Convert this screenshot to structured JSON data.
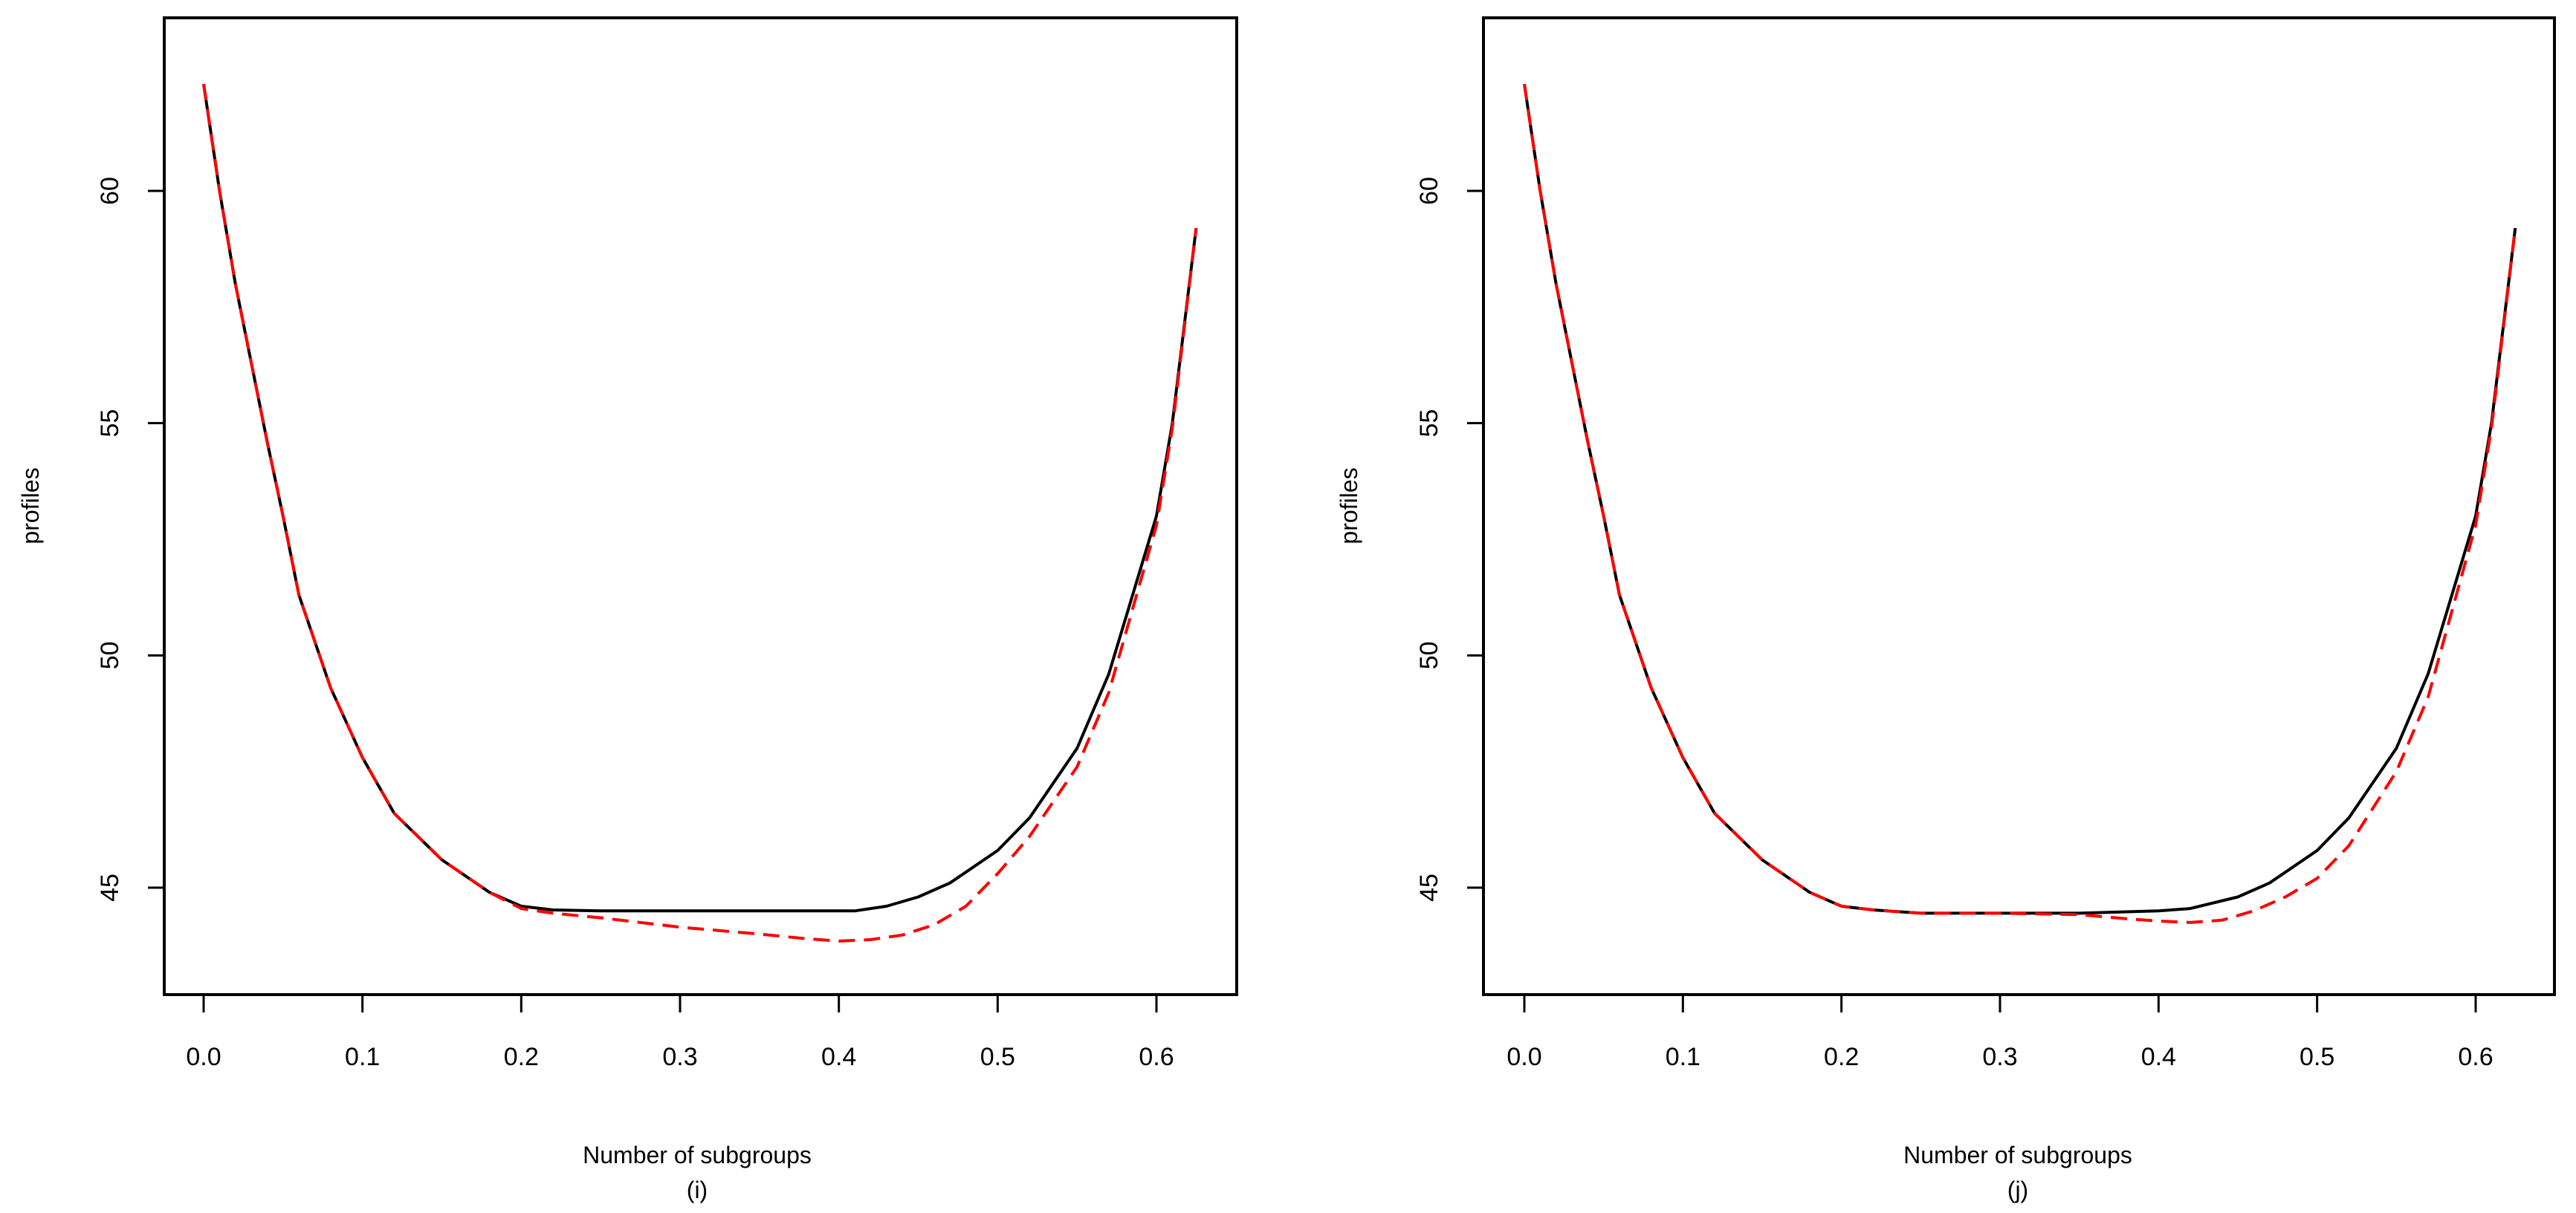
{
  "chart_data": [
    {
      "type": "line",
      "panel_label": "(i)",
      "title": "",
      "xlabel": "Number of subgroups",
      "ylabel": "profiles",
      "xlim": [
        -0.025,
        0.65
      ],
      "ylim": [
        42.7,
        63.7
      ],
      "xticks": [
        0.0,
        0.1,
        0.2,
        0.3,
        0.4,
        0.5,
        0.6
      ],
      "xtick_labels": [
        "0.0",
        "0.1",
        "0.2",
        "0.3",
        "0.4",
        "0.5",
        "0.6"
      ],
      "yticks": [
        45,
        50,
        55,
        60
      ],
      "ytick_labels": [
        "45",
        "50",
        "55",
        "60"
      ],
      "grid": false,
      "legend": null,
      "series": [
        {
          "name": "black-solid",
          "color": "#000000",
          "style": "solid",
          "x": [
            0.0,
            0.01,
            0.02,
            0.03,
            0.04,
            0.05,
            0.06,
            0.08,
            0.1,
            0.12,
            0.15,
            0.18,
            0.2,
            0.22,
            0.25,
            0.3,
            0.35,
            0.41,
            0.43,
            0.45,
            0.47,
            0.5,
            0.52,
            0.55,
            0.57,
            0.6,
            0.61,
            0.625
          ],
          "y": [
            62.3,
            60.0,
            58.0,
            56.3,
            54.6,
            53.0,
            51.3,
            49.3,
            47.8,
            46.6,
            45.6,
            44.9,
            44.6,
            44.52,
            44.5,
            44.5,
            44.5,
            44.5,
            44.6,
            44.8,
            45.1,
            45.8,
            46.5,
            48.0,
            49.6,
            53.0,
            55.0,
            59.2
          ]
        },
        {
          "name": "red-dashed",
          "color": "#ff0000",
          "style": "dashed",
          "x": [
            0.0,
            0.01,
            0.02,
            0.03,
            0.04,
            0.05,
            0.06,
            0.08,
            0.1,
            0.12,
            0.15,
            0.18,
            0.2,
            0.22,
            0.25,
            0.3,
            0.35,
            0.38,
            0.4,
            0.42,
            0.44,
            0.46,
            0.48,
            0.5,
            0.52,
            0.55,
            0.57,
            0.6,
            0.61,
            0.625
          ],
          "y": [
            62.3,
            60.0,
            58.0,
            56.3,
            54.6,
            53.0,
            51.3,
            49.3,
            47.8,
            46.6,
            45.6,
            44.9,
            44.55,
            44.45,
            44.35,
            44.15,
            44.0,
            43.9,
            43.85,
            43.88,
            43.98,
            44.2,
            44.6,
            45.3,
            46.1,
            47.6,
            49.2,
            52.8,
            54.9,
            59.2
          ]
        }
      ]
    },
    {
      "type": "line",
      "panel_label": "(j)",
      "title": "",
      "xlabel": "Number of subgroups",
      "ylabel": "profiles",
      "xlim": [
        -0.025,
        0.65
      ],
      "ylim": [
        42.7,
        63.7
      ],
      "xticks": [
        0.0,
        0.1,
        0.2,
        0.3,
        0.4,
        0.5,
        0.6
      ],
      "xtick_labels": [
        "0.0",
        "0.1",
        "0.2",
        "0.3",
        "0.4",
        "0.5",
        "0.6"
      ],
      "yticks": [
        45,
        50,
        55,
        60
      ],
      "ytick_labels": [
        "45",
        "50",
        "55",
        "60"
      ],
      "grid": false,
      "legend": null,
      "series": [
        {
          "name": "black-solid",
          "color": "#000000",
          "style": "solid",
          "x": [
            0.0,
            0.01,
            0.02,
            0.03,
            0.04,
            0.05,
            0.06,
            0.08,
            0.1,
            0.12,
            0.15,
            0.18,
            0.2,
            0.22,
            0.25,
            0.3,
            0.35,
            0.4,
            0.42,
            0.45,
            0.47,
            0.5,
            0.52,
            0.55,
            0.57,
            0.6,
            0.61,
            0.625
          ],
          "y": [
            62.3,
            60.0,
            58.0,
            56.3,
            54.6,
            53.0,
            51.3,
            49.3,
            47.8,
            46.6,
            45.6,
            44.9,
            44.6,
            44.52,
            44.45,
            44.45,
            44.45,
            44.5,
            44.55,
            44.8,
            45.1,
            45.8,
            46.5,
            48.0,
            49.6,
            53.0,
            55.0,
            59.2
          ]
        },
        {
          "name": "red-dashed",
          "color": "#ff0000",
          "style": "dashed",
          "x": [
            0.0,
            0.01,
            0.02,
            0.03,
            0.04,
            0.05,
            0.06,
            0.08,
            0.1,
            0.12,
            0.15,
            0.18,
            0.2,
            0.22,
            0.25,
            0.3,
            0.35,
            0.38,
            0.4,
            0.42,
            0.44,
            0.46,
            0.48,
            0.5,
            0.52,
            0.55,
            0.57,
            0.6,
            0.61,
            0.625
          ],
          "y": [
            62.3,
            60.0,
            58.0,
            56.3,
            54.6,
            53.0,
            51.3,
            49.3,
            47.8,
            46.6,
            45.6,
            44.9,
            44.6,
            44.52,
            44.45,
            44.45,
            44.42,
            44.33,
            44.28,
            44.25,
            44.3,
            44.5,
            44.8,
            45.2,
            45.9,
            47.5,
            49.1,
            52.8,
            54.9,
            59.2
          ]
        }
      ]
    }
  ],
  "panels": [
    {
      "ylabel": "profiles",
      "xlabel": "Number of subgroups",
      "caption": "(i)",
      "xtick_labels": [
        "0.0",
        "0.1",
        "0.2",
        "0.3",
        "0.4",
        "0.5",
        "0.6"
      ],
      "ytick_labels": [
        "45",
        "50",
        "55",
        "60"
      ]
    },
    {
      "ylabel": "profiles",
      "xlabel": "Number of subgroups",
      "caption": "(j)",
      "xtick_labels": [
        "0.0",
        "0.1",
        "0.2",
        "0.3",
        "0.4",
        "0.5",
        "0.6"
      ],
      "ytick_labels": [
        "45",
        "50",
        "55",
        "60"
      ]
    }
  ],
  "colors": {
    "black_series": "#000000",
    "red_series": "#ff0000",
    "axes": "#000000",
    "background": "#ffffff"
  }
}
